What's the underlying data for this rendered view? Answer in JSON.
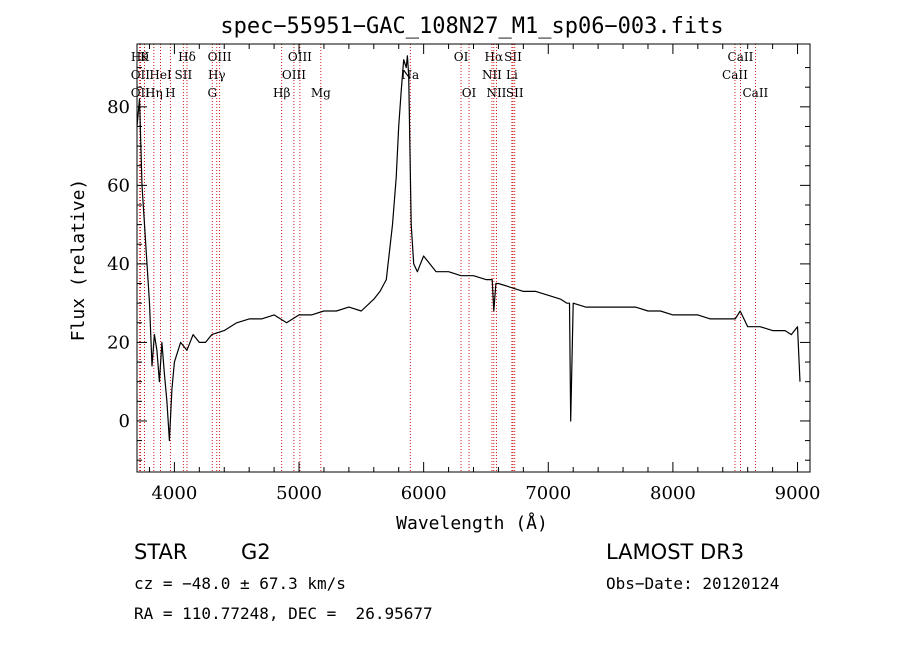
{
  "chart_data": {
    "type": "line",
    "title": "spec−55951−GAC_108N27_M1_sp06−003.fits",
    "xlabel": "Wavelength (Å)",
    "ylabel": "Flux (relative)",
    "xlim": [
      3700,
      9100
    ],
    "ylim": [
      -13,
      96
    ],
    "xticks": [
      4000,
      5000,
      6000,
      7000,
      8000,
      9000
    ],
    "yticks": [
      0,
      20,
      40,
      60,
      80
    ],
    "series": [
      {
        "name": "flux",
        "x": [
          3700,
          3720,
          3740,
          3760,
          3780,
          3800,
          3820,
          3840,
          3860,
          3880,
          3900,
          3920,
          3940,
          3960,
          3980,
          4000,
          4050,
          4100,
          4150,
          4200,
          4250,
          4300,
          4400,
          4500,
          4600,
          4700,
          4800,
          4900,
          5000,
          5100,
          5200,
          5300,
          5400,
          5500,
          5600,
          5650,
          5700,
          5750,
          5780,
          5800,
          5820,
          5840,
          5860,
          5870,
          5880,
          5900,
          5920,
          5950,
          6000,
          6100,
          6200,
          6300,
          6400,
          6500,
          6550,
          6563,
          6580,
          6600,
          6700,
          6800,
          6900,
          7000,
          7100,
          7150,
          7170,
          7180,
          7200,
          7300,
          7400,
          7500,
          7600,
          7700,
          7800,
          7900,
          8000,
          8100,
          8200,
          8300,
          8400,
          8500,
          8540,
          8600,
          8700,
          8800,
          8900,
          8950,
          9000,
          9020
        ],
        "y": [
          75,
          82,
          60,
          50,
          40,
          30,
          14,
          22,
          18,
          10,
          20,
          12,
          5,
          -5,
          8,
          15,
          20,
          18,
          22,
          20,
          20,
          22,
          23,
          25,
          26,
          26,
          27,
          25,
          27,
          27,
          28,
          28,
          29,
          28,
          31,
          33,
          36,
          50,
          62,
          75,
          84,
          92,
          90,
          93,
          88,
          50,
          40,
          38,
          42,
          38,
          38,
          37,
          37,
          36,
          36,
          28,
          35,
          35,
          34,
          33,
          33,
          32,
          31,
          30,
          30,
          0,
          30,
          29,
          29,
          29,
          29,
          29,
          28,
          28,
          27,
          27,
          27,
          26,
          26,
          26,
          28,
          24,
          24,
          23,
          23,
          22,
          24,
          10
        ]
      }
    ],
    "lines_top": [
      {
        "x": 3722,
        "label": "Hθ"
      },
      {
        "x": 3760,
        "label": "K"
      },
      {
        "x": 4101,
        "label": "Hδ"
      },
      {
        "x": 4363,
        "label": "OIII"
      },
      {
        "x": 5007,
        "label": "OIII"
      },
      {
        "x": 6300,
        "label": "OI"
      },
      {
        "x": 6563,
        "label": "Hα"
      },
      {
        "x": 6717,
        "label": "SII"
      },
      {
        "x": 8542,
        "label": "CaII"
      }
    ],
    "lines_mid": [
      {
        "x": 3727,
        "label": "OII"
      },
      {
        "x": 3889,
        "label": "HeI"
      },
      {
        "x": 4072,
        "label": "SII"
      },
      {
        "x": 4340,
        "label": "Hγ"
      },
      {
        "x": 4959,
        "label": "OIII"
      },
      {
        "x": 5893,
        "label": "Na"
      },
      {
        "x": 6548,
        "label": "NII"
      },
      {
        "x": 6708,
        "label": "Li"
      },
      {
        "x": 8498,
        "label": "CaII"
      }
    ],
    "lines_bot": [
      {
        "x": 3727,
        "label": "OII"
      },
      {
        "x": 3835,
        "label": "Hη"
      },
      {
        "x": 3968,
        "label": "H"
      },
      {
        "x": 4304,
        "label": "G"
      },
      {
        "x": 4861,
        "label": "Hβ"
      },
      {
        "x": 5175,
        "label": "Mg"
      },
      {
        "x": 6364,
        "label": "OI"
      },
      {
        "x": 6584,
        "label": "NII"
      },
      {
        "x": 6731,
        "label": "SII"
      },
      {
        "x": 8662,
        "label": "CaII"
      }
    ]
  },
  "info": {
    "object_type": "STAR",
    "subclass": "G2",
    "survey": "LAMOST DR3",
    "cz": "cz = −48.0 ± 67.3 km/s",
    "obs_date": "Obs−Date: 20120124",
    "coords": "RA = 110.77248, DEC =  26.95677"
  }
}
